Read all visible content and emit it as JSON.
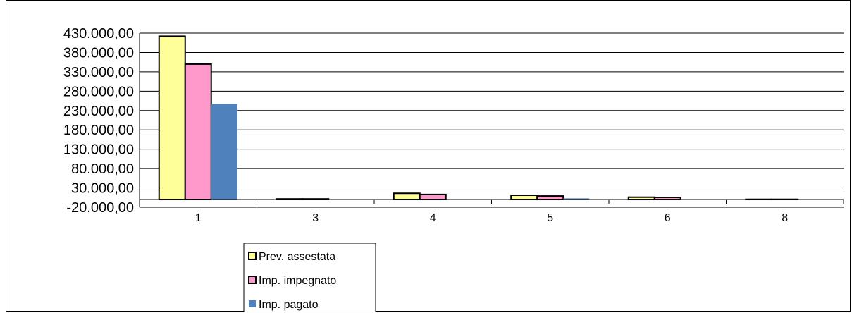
{
  "chart_data": {
    "type": "bar",
    "categories": [
      "1",
      "3",
      "4",
      "5",
      "6",
      "8"
    ],
    "series": [
      {
        "name": "Prev. assestata",
        "color": "#ffff99",
        "stroke": "#000000",
        "values": [
          422000,
          1500,
          16000,
          11000,
          6000,
          500
        ]
      },
      {
        "name": "Imp. impegnato",
        "color": "#ff99cc",
        "stroke": "#000000",
        "values": [
          350000,
          1500,
          13000,
          9000,
          5500,
          500
        ]
      },
      {
        "name": "Imp. pagato",
        "color": "#4f81bd",
        "stroke": "none",
        "values": [
          247000,
          0,
          0,
          3000,
          500,
          0
        ]
      }
    ],
    "yticks": [
      "430.000,00",
      "380.000,00",
      "330.000,00",
      "280.000,00",
      "230.000,00",
      "180.000,00",
      "130.000,00",
      "80.000,00",
      "30.000,00",
      "-20.000,00"
    ],
    "ylim": [
      -20000,
      430000
    ],
    "grid": true,
    "legend_position": "bottom"
  }
}
